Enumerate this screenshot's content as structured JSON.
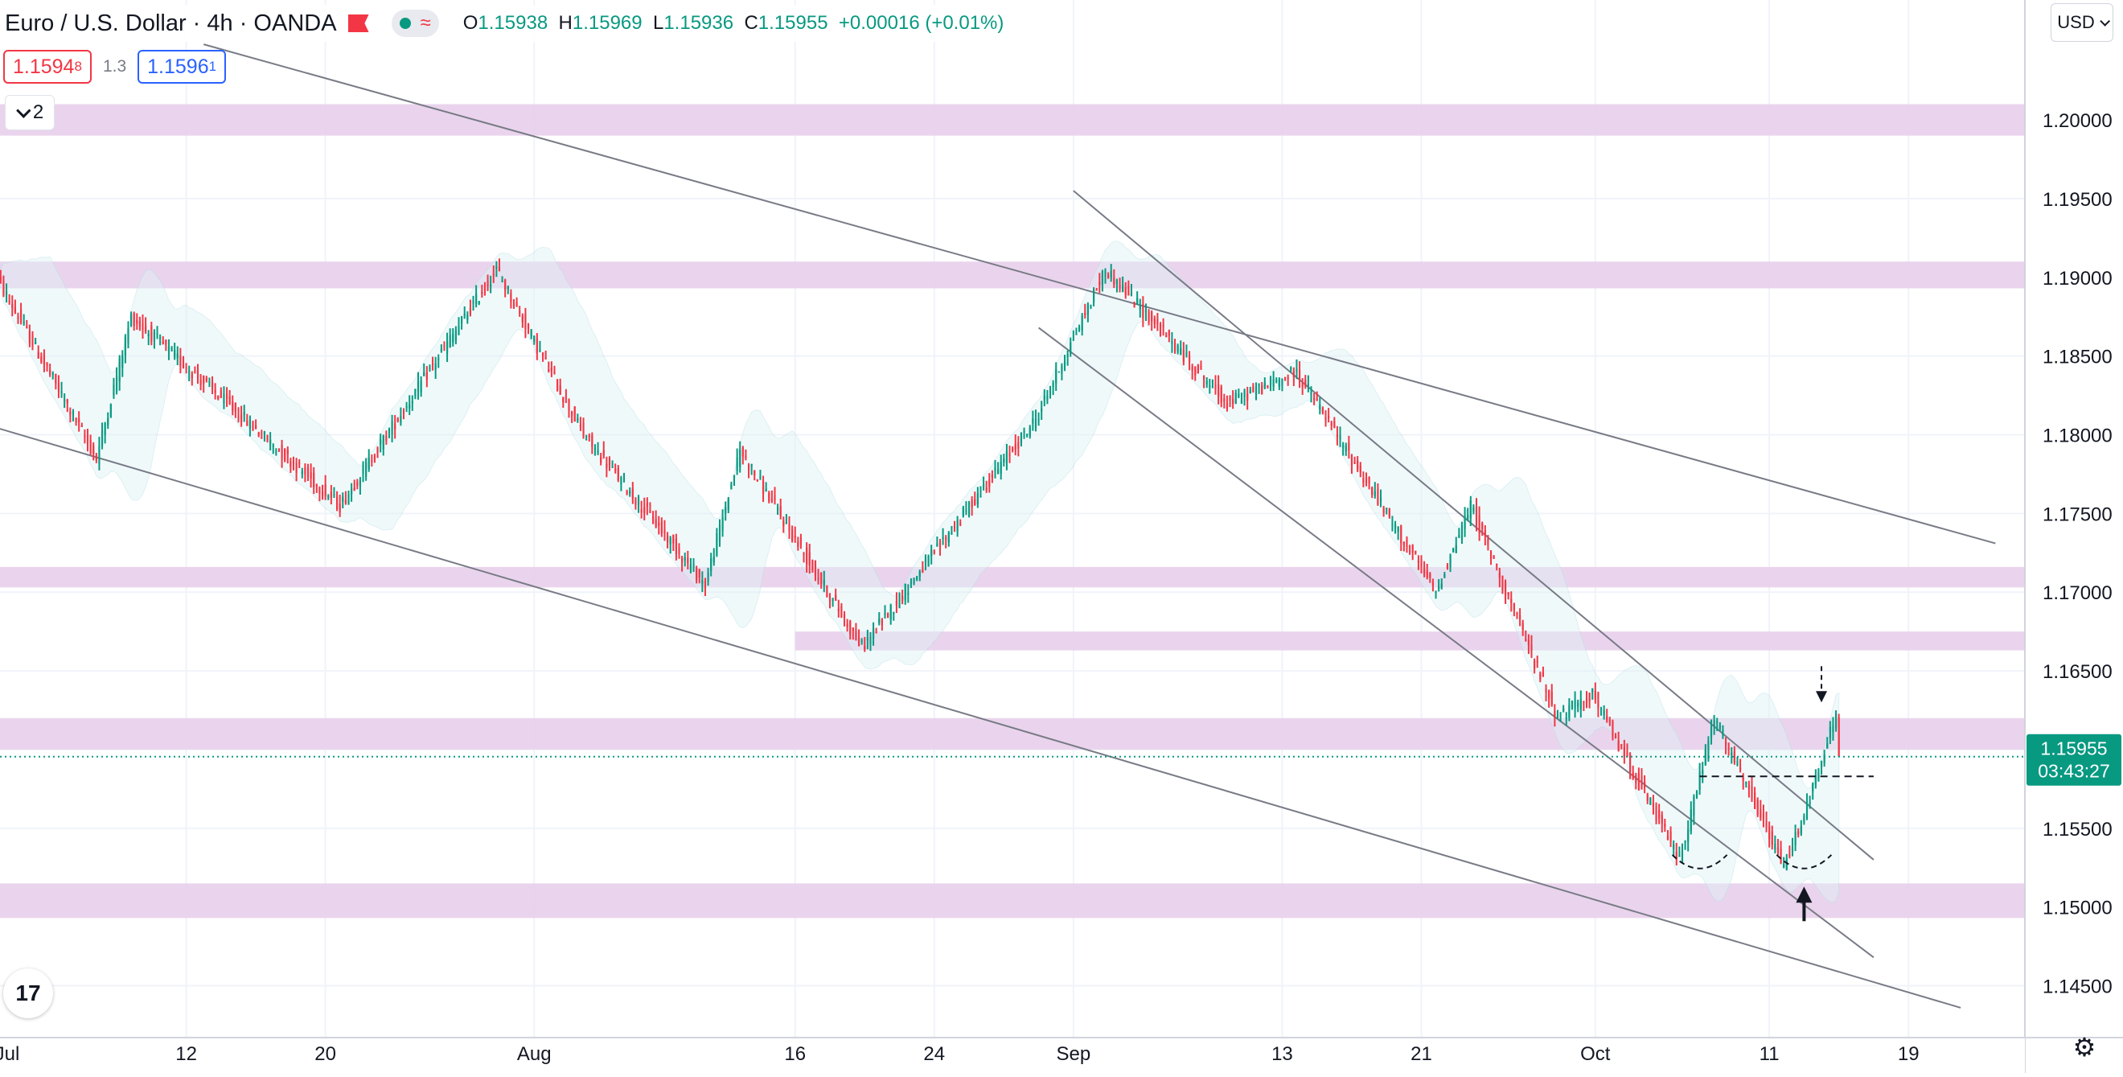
{
  "header": {
    "symbol_title": "Euro / U.S. Dollar · 4h · OANDA",
    "open_label": "O",
    "open": "1.15938",
    "high_label": "H",
    "high": "1.15969",
    "low_label": "L",
    "low": "1.15936",
    "close_label": "C",
    "close": "1.15955",
    "change": "+0.00016 (+0.01%)",
    "flag_icon": "flag-icon",
    "pill_icons": [
      "status-dot-icon",
      "wave-icon"
    ]
  },
  "trade": {
    "sell_price_main": "1.1594",
    "sell_price_sup": "8",
    "spread": "1.3",
    "buy_price_main": "1.1596",
    "buy_price_sup": "1"
  },
  "indicators_toggle": {
    "count": "2"
  },
  "currency_button": {
    "label": "USD"
  },
  "current_price": {
    "price": "1.15955",
    "countdown": "03:43:27"
  },
  "logo": {
    "text": "17"
  },
  "colors": {
    "up": "#089981",
    "down": "#f23645",
    "zone": "#e6cdea",
    "band": "#e0f2f5",
    "grid": "#f0f3fa",
    "line": "#787b86",
    "axis_text": "#131722"
  },
  "chart_data": {
    "type": "candlestick",
    "title": "Euro / U.S. Dollar · 4h · OANDA",
    "x_tick_labels": [
      "Jul",
      "12",
      "20",
      "Aug",
      "16",
      "24",
      "Sep",
      "13",
      "21",
      "Oct",
      "11",
      "19"
    ],
    "y_ticks": [
      "1.14500",
      "1.15000",
      "1.15500",
      "1.16000",
      "1.16500",
      "1.17000",
      "1.17500",
      "1.18000",
      "1.18500",
      "1.19000",
      "1.19500",
      "1.20000"
    ],
    "y_tick_labels_visible": [
      "1.14500",
      "1.15000",
      "1.15500",
      "1.16500",
      "1.17000",
      "1.17500",
      "1.18000",
      "1.18500",
      "1.19000",
      "1.19500"
    ],
    "ylim": [
      1.1415,
      1.2045
    ],
    "xlim": [
      "2021-06-30",
      "2021-10-25"
    ],
    "grid": true,
    "last_price": 1.15955,
    "key_points": [
      {
        "date": "2021-07-01",
        "price": 1.1905
      },
      {
        "date": "2021-07-07",
        "price": 1.1785
      },
      {
        "date": "2021-07-09",
        "price": 1.1875
      },
      {
        "date": "2021-07-21",
        "price": 1.1755
      },
      {
        "date": "2021-07-30",
        "price": 1.1905
      },
      {
        "date": "2021-08-04",
        "price": 1.18
      },
      {
        "date": "2021-08-11",
        "price": 1.1705
      },
      {
        "date": "2021-08-13",
        "price": 1.179
      },
      {
        "date": "2021-08-20",
        "price": 1.1665
      },
      {
        "date": "2021-08-30",
        "price": 1.181
      },
      {
        "date": "2021-09-03",
        "price": 1.1905
      },
      {
        "date": "2021-09-10",
        "price": 1.182
      },
      {
        "date": "2021-09-14",
        "price": 1.184
      },
      {
        "date": "2021-09-22",
        "price": 1.17
      },
      {
        "date": "2021-09-24",
        "price": 1.1755
      },
      {
        "date": "2021-09-29",
        "price": 1.162
      },
      {
        "date": "2021-10-01",
        "price": 1.1635
      },
      {
        "date": "2021-10-06",
        "price": 1.153
      },
      {
        "date": "2021-10-08",
        "price": 1.162
      },
      {
        "date": "2021-10-12",
        "price": 1.1525
      },
      {
        "date": "2021-10-14",
        "price": 1.1585
      },
      {
        "date": "2021-10-15",
        "price": 1.1624
      },
      {
        "date": "2021-10-15",
        "price": 1.15955
      }
    ],
    "zones": [
      {
        "from": 1.199,
        "to": 1.201
      },
      {
        "from": 1.1893,
        "to": 1.191
      },
      {
        "from": 1.1703,
        "to": 1.1716
      },
      {
        "from": 1.1663,
        "to": 1.1675,
        "start_date": "2021-08-16"
      },
      {
        "from": 1.16,
        "to": 1.162
      },
      {
        "from": 1.1493,
        "to": 1.1515
      }
    ],
    "trendlines": [
      {
        "from": {
          "date": "2021-07-13",
          "price": 1.2048
        },
        "to": {
          "date": "2021-10-24",
          "price": 1.1731
        }
      },
      {
        "from": {
          "date": "2021-06-30",
          "price": 1.1808
        },
        "to": {
          "date": "2021-10-22",
          "price": 1.1436
        }
      },
      {
        "from": {
          "date": "2021-08-30",
          "price": 1.1868
        },
        "to": {
          "date": "2021-10-17",
          "price": 1.1468
        }
      },
      {
        "from": {
          "date": "2021-09-01",
          "price": 1.1955
        },
        "to": {
          "date": "2021-10-17",
          "price": 1.153
        }
      }
    ],
    "neckline": {
      "from_date": "2021-10-07",
      "to_date": "2021-10-17",
      "price": 1.1583
    },
    "bottom_arcs": [
      {
        "date": "2021-10-07",
        "price": 1.1527
      },
      {
        "date": "2021-10-13",
        "price": 1.1527
      }
    ],
    "arrows": [
      {
        "direction": "up",
        "date": "2021-10-13",
        "from_price": 1.1491,
        "to_price": 1.1513
      },
      {
        "direction": "down",
        "date": "2021-10-14",
        "from_price": 1.1653,
        "to_price": 1.163
      }
    ]
  }
}
